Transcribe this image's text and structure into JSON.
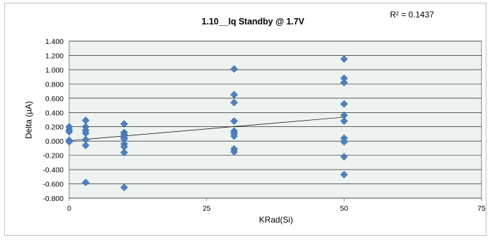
{
  "chart_data": {
    "type": "scatter",
    "title": "1.10__Iq Standby @ 1.7V",
    "annotation": "R² = 0.1437",
    "xlabel": "KRad(Si)",
    "ylabel": "Delta (µA)",
    "xlim": [
      0,
      75
    ],
    "ylim": [
      -0.8,
      1.4
    ],
    "x_ticks": [
      "0",
      "25",
      "50",
      "75"
    ],
    "x_tick_values": [
      0,
      25,
      50,
      75
    ],
    "y_ticks": [
      "1.400",
      "1.200",
      "1.000",
      "0.800",
      "0.600",
      "0.400",
      "0.200",
      "0.000",
      "-0.200",
      "-0.400",
      "-0.600",
      "-0.800"
    ],
    "y_tick_values": [
      1.4,
      1.2,
      1.0,
      0.8,
      0.6,
      0.4,
      0.2,
      0.0,
      -0.2,
      -0.4,
      -0.6,
      -0.8
    ],
    "grid": "horizontal",
    "marker": "diamond",
    "colors": {
      "marker": "#4f81bd",
      "plot_bg": "#eef3f1",
      "trendline": "#000000",
      "grid": "#000000"
    },
    "points": [
      [
        0,
        0.2
      ],
      [
        0,
        0.16
      ],
      [
        0,
        0.13
      ],
      [
        0,
        0.01
      ],
      [
        0,
        -0.01
      ],
      [
        3,
        0.29
      ],
      [
        3,
        0.2
      ],
      [
        3,
        0.15
      ],
      [
        3,
        0.11
      ],
      [
        3,
        0.02
      ],
      [
        3,
        -0.06
      ],
      [
        3,
        -0.58
      ],
      [
        10,
        0.24
      ],
      [
        10,
        0.12
      ],
      [
        10,
        0.09
      ],
      [
        10,
        0.05
      ],
      [
        10,
        0.03
      ],
      [
        10,
        -0.04
      ],
      [
        10,
        -0.08
      ],
      [
        10,
        -0.16
      ],
      [
        10,
        -0.65
      ],
      [
        30,
        1.01
      ],
      [
        30,
        0.65
      ],
      [
        30,
        0.54
      ],
      [
        30,
        0.28
      ],
      [
        30,
        0.14
      ],
      [
        30,
        0.11
      ],
      [
        30,
        0.07
      ],
      [
        30,
        -0.11
      ],
      [
        30,
        -0.15
      ],
      [
        50,
        1.15
      ],
      [
        50,
        0.88
      ],
      [
        50,
        0.82
      ],
      [
        50,
        0.52
      ],
      [
        50,
        0.36
      ],
      [
        50,
        0.28
      ],
      [
        50,
        0.04
      ],
      [
        50,
        -0.01
      ],
      [
        50,
        -0.22
      ],
      [
        50,
        -0.47
      ]
    ],
    "trendline": {
      "type": "linear",
      "x": [
        0,
        50
      ],
      "y": [
        0.005,
        0.335
      ]
    }
  }
}
